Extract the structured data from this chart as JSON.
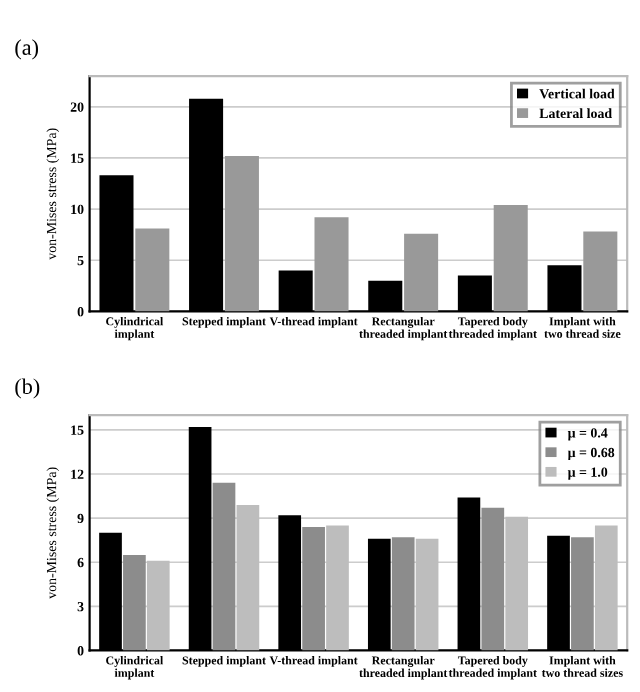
{
  "chart_data": [
    {
      "type": "bar",
      "title": "(a)",
      "ylabel": "von-Mises stress (MPa)",
      "categories": [
        "Cylindrical\nimplant",
        "Stepped implant",
        "V-thread implant",
        "Rectangular\nthreaded implant",
        "Tapered body\nthreaded implant",
        "Implant with\ntwo thread size"
      ],
      "series": [
        {
          "name": "Vertical load",
          "color": "#000000",
          "values": [
            13.3,
            20.8,
            4.0,
            3.0,
            3.5,
            4.5
          ]
        },
        {
          "name": "Lateral load",
          "color": "#999999",
          "values": [
            8.1,
            15.2,
            9.2,
            7.6,
            10.4,
            7.8
          ]
        }
      ],
      "ylim": [
        0,
        23
      ],
      "yticks": [
        0,
        5,
        10,
        15,
        20
      ],
      "grid": "y",
      "legend": "top right"
    },
    {
      "type": "bar",
      "title": "(b)",
      "ylabel": "von-Mises stress (MPa)",
      "categories": [
        "Cylindrical\nimplant",
        "Stepped implant",
        "V-thread implant",
        "Rectangular\nthreaded implant",
        "Tapered body\nthreaded implant",
        "Implant with\ntwo thread sizes"
      ],
      "series": [
        {
          "name": "μ = 0.4",
          "color": "#000000",
          "values": [
            8.0,
            15.2,
            9.2,
            7.6,
            10.4,
            7.8
          ]
        },
        {
          "name": "μ = 0.68",
          "color": "#8c8c8c",
          "values": [
            6.5,
            11.4,
            8.4,
            7.7,
            9.7,
            7.7
          ]
        },
        {
          "name": "μ = 1.0",
          "color": "#bdbdbd",
          "values": [
            6.1,
            9.9,
            8.5,
            7.6,
            9.1,
            8.5
          ]
        }
      ],
      "ylim": [
        0,
        16
      ],
      "yticks": [
        0,
        3,
        6,
        9,
        12,
        15
      ],
      "grid": "y",
      "legend": "top right"
    }
  ]
}
